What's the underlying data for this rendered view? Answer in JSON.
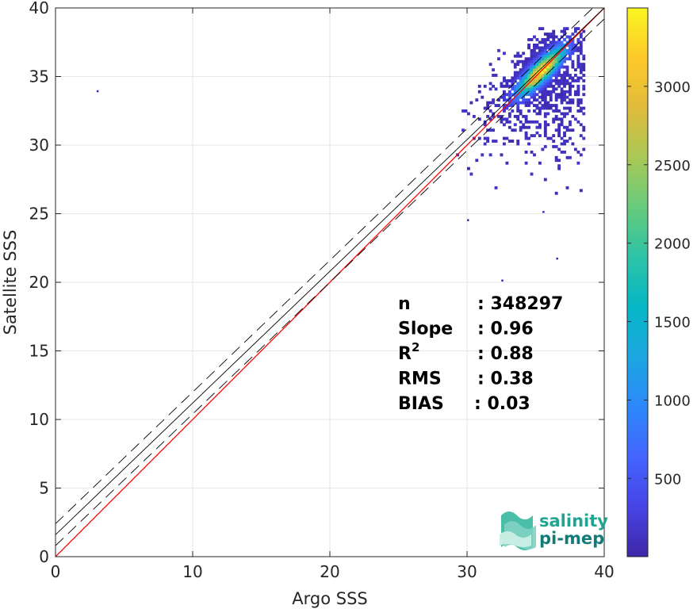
{
  "chart_data": {
    "type": "heatmap",
    "xlabel": "Argo SSS",
    "ylabel": "Satellite SSS",
    "xlim": [
      0,
      40
    ],
    "ylim": [
      0,
      40
    ],
    "xticks": [
      0,
      10,
      20,
      30,
      40
    ],
    "yticks": [
      0,
      5,
      10,
      15,
      20,
      25,
      30,
      35,
      40
    ],
    "grid": true,
    "density": {
      "center": [
        35.3,
        35.3
      ],
      "peak_count": 3500,
      "x_range": [
        28,
        38.5
      ],
      "y_range": [
        24,
        38.5
      ]
    },
    "outliers": [
      [
        3,
        34
      ],
      [
        35.5,
        25.2
      ],
      [
        36.5,
        21.8
      ],
      [
        32.5,
        20.2
      ],
      [
        30,
        24.6
      ]
    ],
    "reference_lines": [
      {
        "name": "identity",
        "color": "#ff0000",
        "style": "solid",
        "slope": 1,
        "intercept": 0
      },
      {
        "name": "regression",
        "color": "#000000",
        "style": "solid",
        "slope": 0.96,
        "intercept": 1.6
      },
      {
        "name": "upper-bound",
        "color": "#000000",
        "style": "dashed",
        "slope": 0.96,
        "intercept": 2.4
      },
      {
        "name": "lower-bound",
        "color": "#000000",
        "style": "dashed",
        "slope": 0.96,
        "intercept": 0.8
      }
    ],
    "colorbar": {
      "min": 1,
      "max": 3500,
      "ticks": [
        500,
        1000,
        1500,
        2000,
        2500,
        3000
      ],
      "colormap": [
        "#3e26a8",
        "#4744e6",
        "#4465fe",
        "#2d89fb",
        "#1ba6e0",
        "#06b7c6",
        "#2cc3a6",
        "#66cb7c",
        "#a9c855",
        "#e1bb3b",
        "#fdc929",
        "#f9f621"
      ]
    },
    "stats": [
      {
        "label": "n",
        "sup": "",
        "value": ": 348297"
      },
      {
        "label": "Slope",
        "sup": "",
        "value": ": 0.96"
      },
      {
        "label": "R",
        "sup": "2",
        "value": ": 0.88"
      },
      {
        "label": "RMS",
        "sup": "",
        "value": ": 0.38"
      },
      {
        "label": "BIAS",
        "sup": "",
        "value": ": 0.03"
      }
    ]
  },
  "logo": {
    "line1": "salinity",
    "line2": "pi-mep",
    "color1": "#1fa590",
    "color2": "#137a78"
  }
}
